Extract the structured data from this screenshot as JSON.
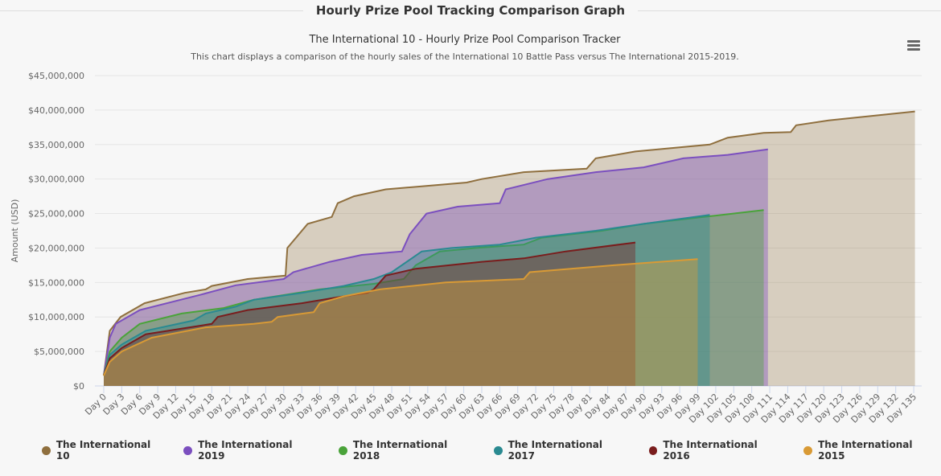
{
  "page": {
    "section_title": "Hourly Prize Pool Tracking Comparison Graph",
    "menu_icon": "hamburger-menu-icon"
  },
  "chart_data": {
    "type": "area",
    "title": "The International 10 - Hourly Prize Pool Comparison Tracker",
    "subtitle": "This chart displays a comparison of the hourly sales of the International 10 Battle Pass versus The International 2015-2019.",
    "ylabel": "Amount (USD)",
    "xlabel": "",
    "ylim": [
      0,
      45000000
    ],
    "xlim": [
      0,
      135
    ],
    "yticks": [
      "$0",
      "$5,000,000",
      "$10,000,000",
      "$15,000,000",
      "$20,000,000",
      "$25,000,000",
      "$30,000,000",
      "$35,000,000",
      "$40,000,000",
      "$45,000,000"
    ],
    "xtick_step_days": 3,
    "xtick_prefix": "Day ",
    "grid": true,
    "legend": "bottom",
    "series": [
      {
        "name": "The International 10",
        "color": "#8f6f3e",
        "points": [
          [
            0,
            1500000
          ],
          [
            1,
            8000000
          ],
          [
            2.8,
            10000000
          ],
          [
            6.8,
            12000000
          ],
          [
            13.5,
            13500000
          ],
          [
            17,
            14000000
          ],
          [
            18,
            14500000
          ],
          [
            24,
            15500000
          ],
          [
            30.3,
            16000000
          ],
          [
            30.6,
            20000000
          ],
          [
            34,
            23500000
          ],
          [
            38,
            24500000
          ],
          [
            39,
            26500000
          ],
          [
            41.7,
            27500000
          ],
          [
            47,
            28500000
          ],
          [
            60.5,
            29500000
          ],
          [
            63,
            30000000
          ],
          [
            70,
            31000000
          ],
          [
            80.5,
            31500000
          ],
          [
            82,
            33000000
          ],
          [
            88.6,
            34000000
          ],
          [
            101,
            35000000
          ],
          [
            104,
            36000000
          ],
          [
            110,
            36700000
          ],
          [
            114.5,
            36800000
          ],
          [
            115.4,
            37800000
          ],
          [
            120.8,
            38500000
          ],
          [
            135.2,
            39800000
          ]
        ]
      },
      {
        "name": "The International 2019",
        "color": "#7b4fbf",
        "points": [
          [
            0,
            1500000
          ],
          [
            1,
            7000000
          ],
          [
            2,
            9000000
          ],
          [
            6,
            11000000
          ],
          [
            16,
            13200000
          ],
          [
            22,
            14600000
          ],
          [
            30,
            15500000
          ],
          [
            31.6,
            16500000
          ],
          [
            37.7,
            18000000
          ],
          [
            43,
            19000000
          ],
          [
            49.7,
            19500000
          ],
          [
            51,
            22000000
          ],
          [
            53.8,
            25000000
          ],
          [
            59,
            26000000
          ],
          [
            66,
            26500000
          ],
          [
            67,
            28500000
          ],
          [
            74,
            30000000
          ],
          [
            82,
            31000000
          ],
          [
            90,
            31700000
          ],
          [
            96.6,
            33000000
          ],
          [
            104,
            33500000
          ],
          [
            110.7,
            34300000
          ]
        ]
      },
      {
        "name": "The International 2018",
        "color": "#4aa33a",
        "points": [
          [
            0,
            1500000
          ],
          [
            1,
            5000000
          ],
          [
            3,
            7000000
          ],
          [
            6,
            9000000
          ],
          [
            13,
            10500000
          ],
          [
            20,
            11300000
          ],
          [
            25,
            12500000
          ],
          [
            36,
            14000000
          ],
          [
            45,
            14800000
          ],
          [
            50,
            15500000
          ],
          [
            52,
            17500000
          ],
          [
            56,
            19500000
          ],
          [
            62,
            20000000
          ],
          [
            70,
            20500000
          ],
          [
            73,
            21500000
          ],
          [
            83,
            22500000
          ],
          [
            90,
            23500000
          ],
          [
            100,
            24500000
          ],
          [
            110,
            25500000
          ]
        ]
      },
      {
        "name": "The International 2017",
        "color": "#2a8a91",
        "points": [
          [
            0,
            1500000
          ],
          [
            1,
            4500000
          ],
          [
            3,
            6000000
          ],
          [
            7,
            8000000
          ],
          [
            15,
            9500000
          ],
          [
            17,
            10500000
          ],
          [
            22,
            11500000
          ],
          [
            25,
            12500000
          ],
          [
            33,
            13500000
          ],
          [
            40,
            14500000
          ],
          [
            45,
            15500000
          ],
          [
            48,
            16500000
          ],
          [
            53,
            19500000
          ],
          [
            58,
            20000000
          ],
          [
            66,
            20500000
          ],
          [
            72,
            21500000
          ],
          [
            82,
            22500000
          ],
          [
            90,
            23500000
          ],
          [
            101,
            24800000
          ]
        ]
      },
      {
        "name": "The International 2016",
        "color": "#7a1d1d",
        "points": [
          [
            0,
            1500000
          ],
          [
            1,
            4000000
          ],
          [
            3,
            5500000
          ],
          [
            7,
            7500000
          ],
          [
            18,
            9000000
          ],
          [
            19,
            10000000
          ],
          [
            24,
            11000000
          ],
          [
            33,
            12000000
          ],
          [
            40,
            13000000
          ],
          [
            44,
            13500000
          ],
          [
            45,
            14000000
          ],
          [
            47,
            16000000
          ],
          [
            52,
            17000000
          ],
          [
            63,
            18000000
          ],
          [
            70,
            18500000
          ],
          [
            77,
            19500000
          ],
          [
            88.6,
            20800000
          ]
        ]
      },
      {
        "name": "The International 2015",
        "color": "#d99a35",
        "points": [
          [
            0,
            1500000
          ],
          [
            1,
            3500000
          ],
          [
            3,
            5000000
          ],
          [
            8,
            7000000
          ],
          [
            17,
            8500000
          ],
          [
            25,
            9000000
          ],
          [
            28,
            9300000
          ],
          [
            29,
            10000000
          ],
          [
            35,
            10700000
          ],
          [
            36,
            12000000
          ],
          [
            40,
            13000000
          ],
          [
            46,
            14000000
          ],
          [
            57,
            15000000
          ],
          [
            70,
            15500000
          ],
          [
            71,
            16500000
          ],
          [
            85,
            17500000
          ],
          [
            99,
            18400000
          ]
        ]
      }
    ]
  }
}
